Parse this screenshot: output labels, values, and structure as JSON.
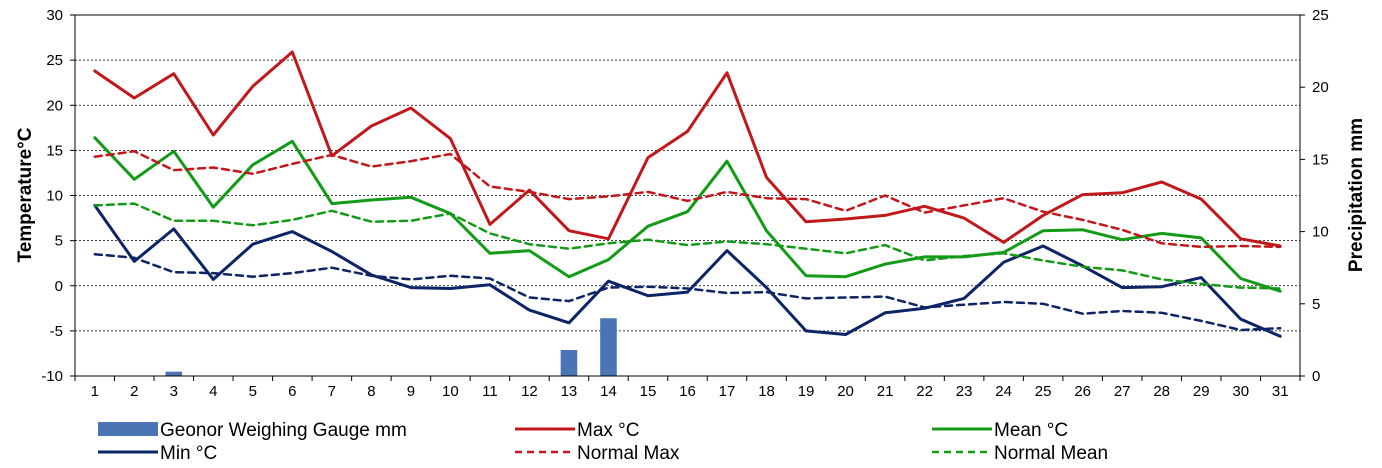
{
  "chart_data": {
    "type": "line",
    "title": "",
    "x": [
      1,
      2,
      3,
      4,
      5,
      6,
      7,
      8,
      9,
      10,
      11,
      12,
      13,
      14,
      15,
      16,
      17,
      18,
      19,
      20,
      21,
      22,
      23,
      24,
      25,
      26,
      27,
      28,
      29,
      30,
      31
    ],
    "xlabel": "",
    "ylabel": "Temperature°C",
    "y2label": "Precipitation mm",
    "ylim": [
      -10,
      30
    ],
    "y2lim": [
      0,
      25
    ],
    "yticks": [
      -10,
      -5,
      0,
      5,
      10,
      15,
      20,
      25,
      30
    ],
    "y2ticks": [
      0,
      5,
      10,
      15,
      20,
      25
    ],
    "grid": "horizontal dashed",
    "legend_position": "bottom",
    "series": [
      {
        "name": "Geonor Weighing Gauge mm",
        "kind": "bar",
        "axis": "right",
        "color": "#4a74b4",
        "style": "solid",
        "values": [
          0,
          0,
          0.3,
          0,
          0,
          0,
          0,
          0,
          0,
          0,
          0,
          0,
          1.8,
          4,
          0,
          0,
          0,
          0,
          0,
          0,
          0,
          0,
          0,
          0,
          0,
          0,
          0,
          0,
          0,
          0,
          0
        ]
      },
      {
        "name": "Max °C",
        "kind": "line",
        "axis": "left",
        "color": "#c0181b",
        "style": "solid",
        "values": [
          23.8,
          20.8,
          23.5,
          16.7,
          22.1,
          25.9,
          14.4,
          17.7,
          19.7,
          16.3,
          6.8,
          10.6,
          6.1,
          5.2,
          14.2,
          17.1,
          23.6,
          12.0,
          7.1,
          7.4,
          7.8,
          8.8,
          7.5,
          4.8,
          7.8,
          10.1,
          10.3,
          11.5,
          9.6,
          5.2,
          4.4
        ]
      },
      {
        "name": "Mean °C",
        "kind": "line",
        "axis": "left",
        "color": "#139b18",
        "style": "solid",
        "values": [
          16.4,
          11.8,
          14.9,
          8.7,
          13.4,
          16.0,
          9.1,
          9.5,
          9.8,
          8.0,
          3.6,
          3.9,
          1.0,
          2.9,
          6.6,
          8.2,
          13.8,
          6.1,
          1.1,
          1.0,
          2.4,
          3.2,
          3.2,
          3.7,
          6.1,
          6.2,
          5.1,
          5.8,
          5.3,
          0.8,
          -0.6
        ]
      },
      {
        "name": "Min °C",
        "kind": "line",
        "axis": "left",
        "color": "#0d2466",
        "style": "solid",
        "values": [
          8.9,
          2.7,
          6.3,
          0.7,
          4.6,
          6.0,
          3.8,
          1.2,
          -0.2,
          -0.3,
          0.1,
          -2.7,
          -4.1,
          0.5,
          -1.1,
          -0.7,
          3.9,
          -0.2,
          -5.0,
          -5.4,
          -3.0,
          -2.5,
          -1.4,
          2.6,
          4.4,
          2.2,
          -0.2,
          -0.1,
          0.9,
          -3.7,
          -5.6
        ]
      },
      {
        "name": "Normal Max",
        "kind": "line",
        "axis": "left",
        "color": "#c0181b",
        "style": "dashed",
        "values": [
          14.3,
          14.9,
          12.8,
          13.1,
          12.4,
          13.5,
          14.5,
          13.2,
          13.8,
          14.6,
          11.0,
          10.4,
          9.6,
          9.9,
          10.4,
          9.4,
          10.4,
          9.7,
          9.6,
          8.3,
          10.0,
          8.1,
          8.9,
          9.7,
          8.2,
          7.3,
          6.2,
          4.7,
          4.3,
          4.4,
          4.3
        ]
      },
      {
        "name": "Normal Mean",
        "kind": "line",
        "axis": "left",
        "color": "#139b18",
        "style": "dashed",
        "values": [
          8.9,
          9.1,
          7.2,
          7.2,
          6.7,
          7.3,
          8.3,
          7.1,
          7.2,
          8.0,
          5.8,
          4.6,
          4.1,
          4.7,
          5.1,
          4.5,
          4.9,
          4.6,
          4.1,
          3.6,
          4.5,
          2.8,
          3.3,
          3.6,
          2.8,
          2.1,
          1.7,
          0.7,
          0.2,
          -0.2,
          -0.3
        ]
      },
      {
        "name": "Normal Min",
        "kind": "line",
        "axis": "left",
        "color": "#0d2466",
        "style": "dashed",
        "in_legend": false,
        "values": [
          3.5,
          3.1,
          1.5,
          1.4,
          1.0,
          1.4,
          2.0,
          1.1,
          0.7,
          1.1,
          0.8,
          -1.3,
          -1.7,
          -0.2,
          -0.1,
          -0.3,
          -0.8,
          -0.7,
          -1.4,
          -1.3,
          -1.2,
          -2.4,
          -2.1,
          -1.8,
          -2.0,
          -3.1,
          -2.8,
          -3.0,
          -3.9,
          -4.9,
          -4.7
        ]
      }
    ]
  },
  "legend": {
    "items": [
      {
        "label": "Geonor Weighing Gauge mm",
        "kind": "bar",
        "color": "#4a74b4",
        "style": "solid"
      },
      {
        "label": "Max °C",
        "kind": "line",
        "color": "#c0181b",
        "style": "solid"
      },
      {
        "label": "Mean °C",
        "kind": "line",
        "color": "#139b18",
        "style": "solid"
      },
      {
        "label": "Min °C",
        "kind": "line",
        "color": "#0d2466",
        "style": "solid"
      },
      {
        "label": "Normal Max",
        "kind": "line",
        "color": "#c0181b",
        "style": "dashed"
      },
      {
        "label": "Normal Mean",
        "kind": "line",
        "color": "#139b18",
        "style": "dashed"
      }
    ]
  }
}
